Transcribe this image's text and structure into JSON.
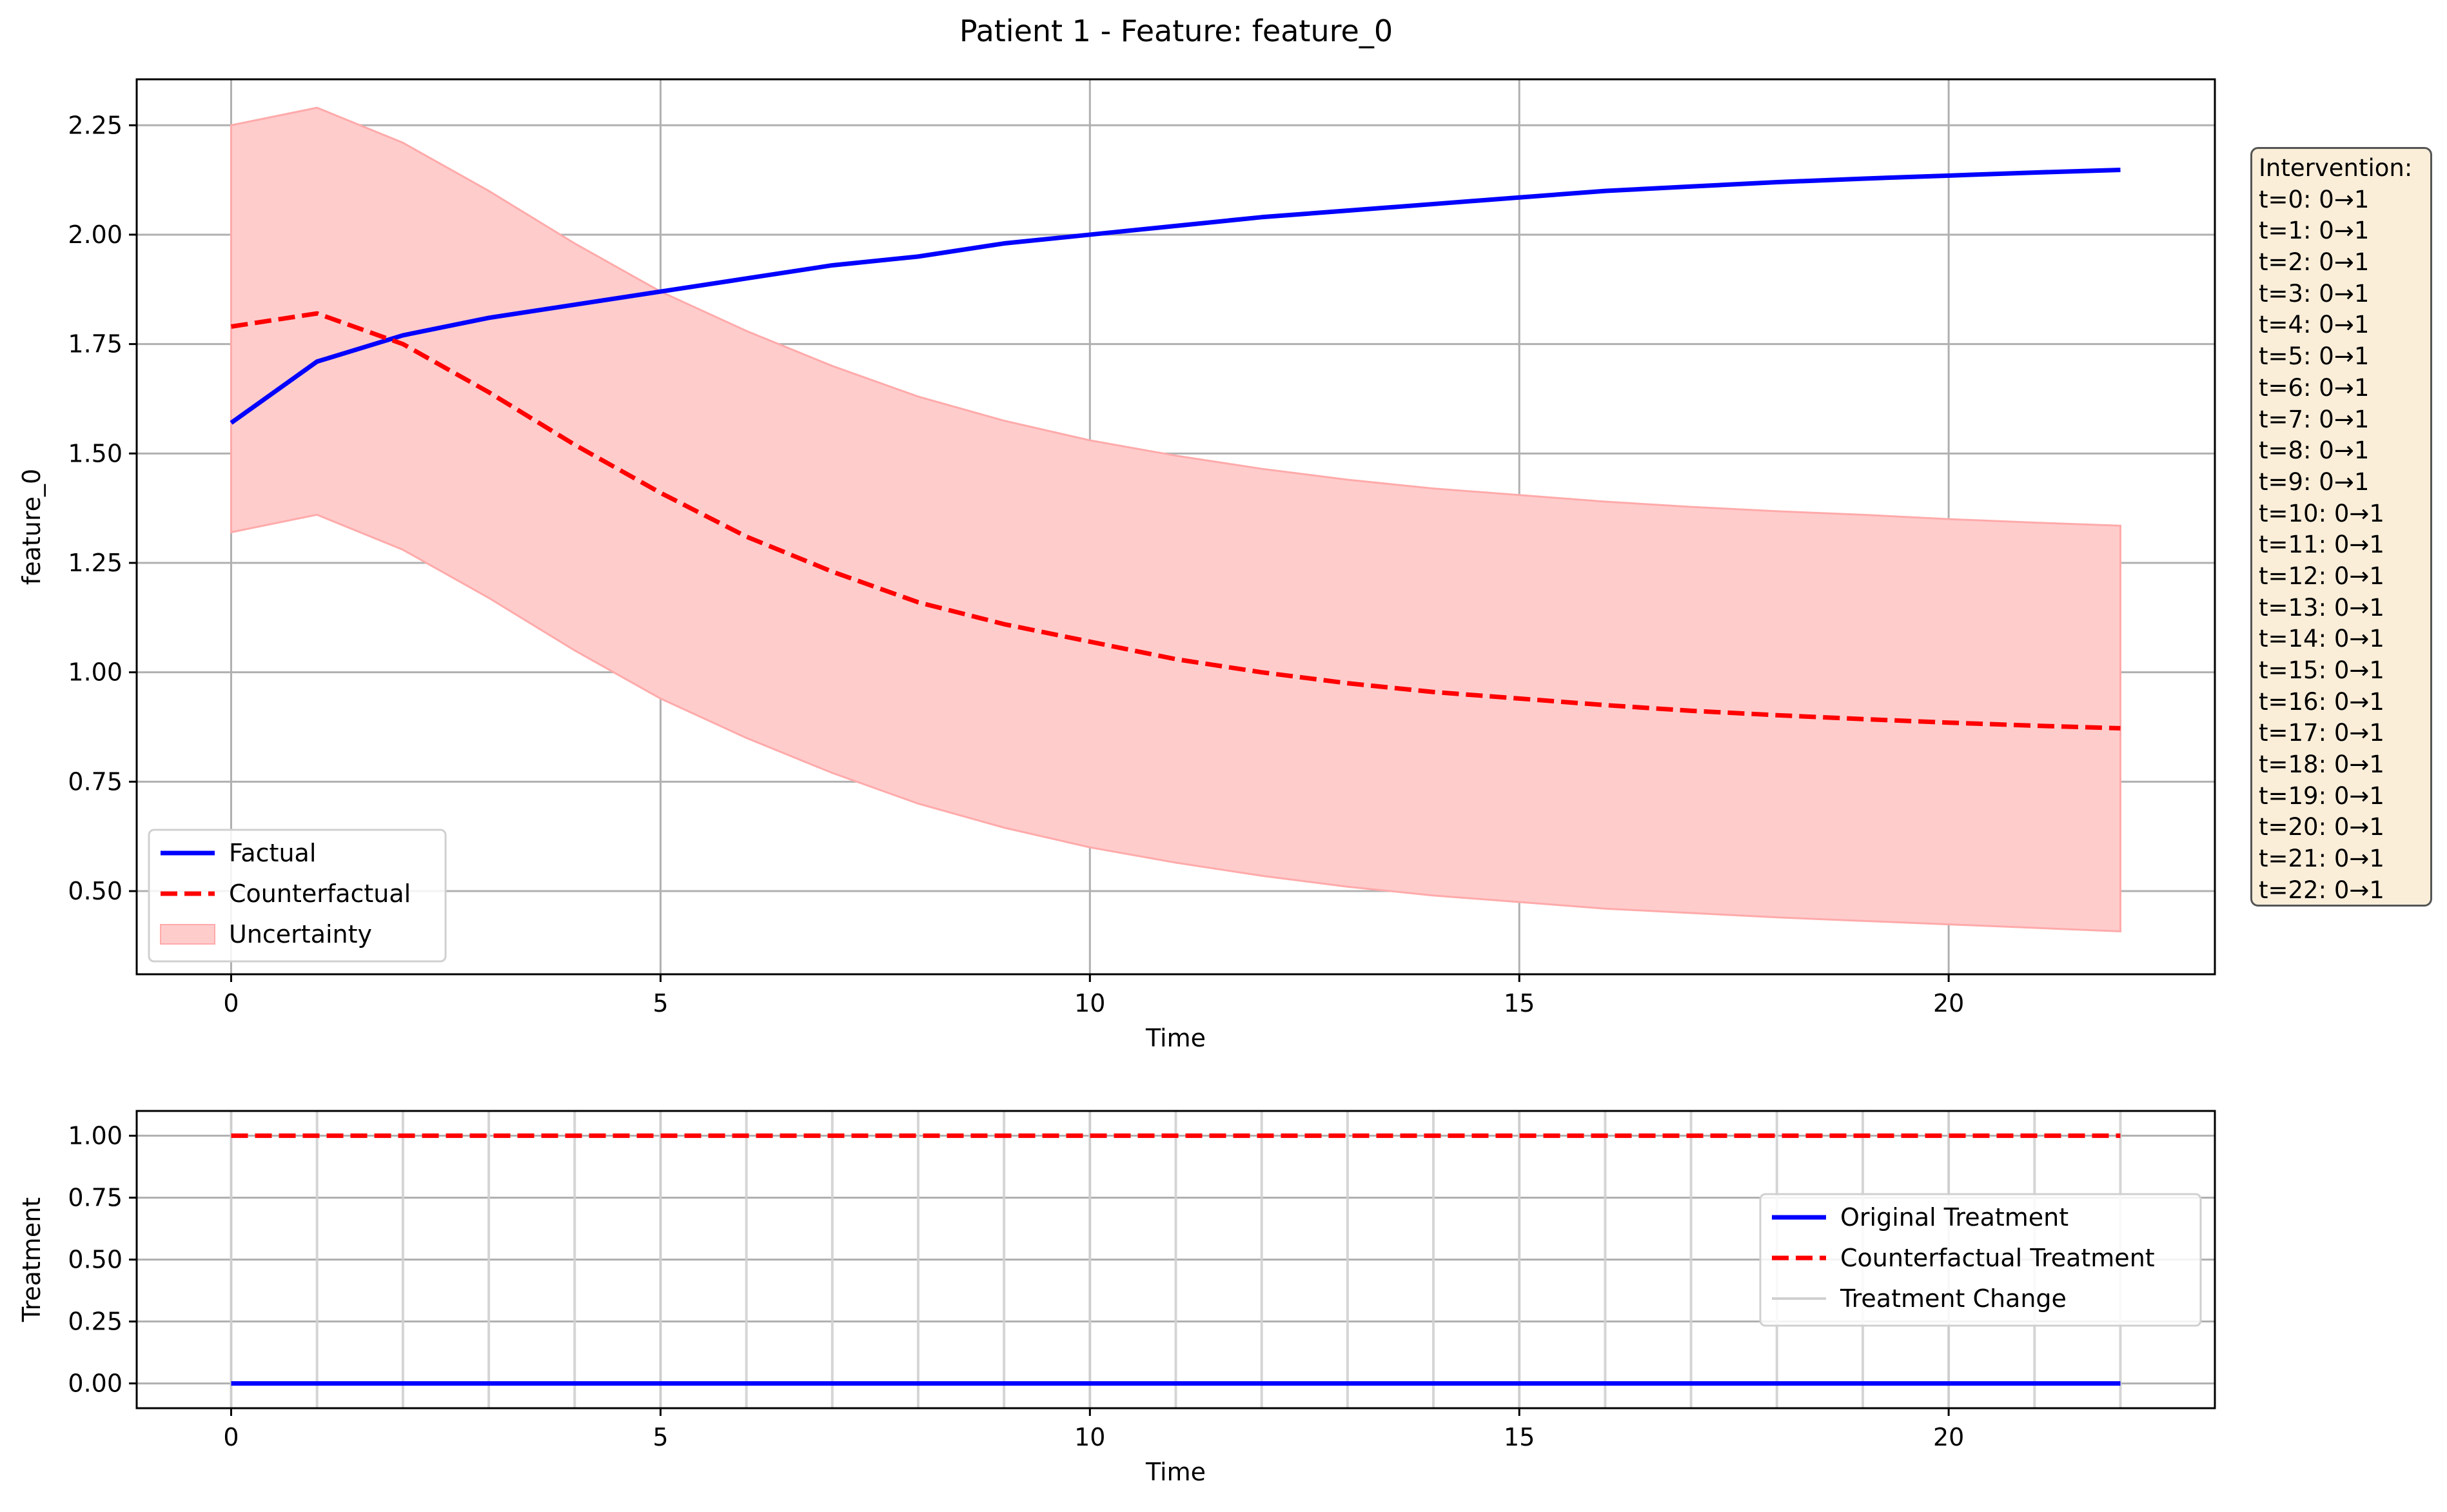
{
  "figure_title": "Patient 1 - Feature: feature_0",
  "colors": {
    "factual": "#0000ff",
    "counterfactual": "#ff0000",
    "uncertainty_fill": "#ffcccc",
    "uncertainty_edge": "#ffaaaa",
    "grid": "#b0b0b0",
    "treatment_change": "#d0d0d0",
    "annotation_bg": "#f5deb3"
  },
  "chart_data": [
    {
      "type": "line",
      "title": "",
      "xlabel": "Time",
      "ylabel": "feature_0",
      "xlim": [
        -1.1,
        23.1
      ],
      "ylim": [
        0.31,
        2.355
      ],
      "xticks": [
        0,
        5,
        10,
        15,
        20
      ],
      "yticks": [
        "0.50",
        "0.75",
        "1.00",
        "1.25",
        "1.50",
        "1.75",
        "2.00",
        "2.25"
      ],
      "grid": true,
      "legend_position": "lower left",
      "x": [
        0,
        1,
        2,
        3,
        4,
        5,
        6,
        7,
        8,
        9,
        10,
        11,
        12,
        13,
        14,
        15,
        16,
        17,
        18,
        19,
        20,
        21,
        22
      ],
      "series": [
        {
          "name": "Factual",
          "style": "solid",
          "color": "#0000ff",
          "values": [
            1.57,
            1.71,
            1.77,
            1.81,
            1.84,
            1.87,
            1.9,
            1.93,
            1.95,
            1.98,
            2.0,
            2.02,
            2.04,
            2.055,
            2.07,
            2.085,
            2.1,
            2.11,
            2.12,
            2.128,
            2.135,
            2.142,
            2.148
          ]
        },
        {
          "name": "Counterfactual",
          "style": "dashed",
          "color": "#ff0000",
          "values": [
            1.79,
            1.82,
            1.75,
            1.64,
            1.52,
            1.41,
            1.31,
            1.23,
            1.16,
            1.11,
            1.07,
            1.03,
            1.0,
            0.975,
            0.955,
            0.94,
            0.925,
            0.912,
            0.902,
            0.893,
            0.885,
            0.878,
            0.872
          ]
        }
      ],
      "band": {
        "name": "Uncertainty",
        "color": "#ffcccc",
        "upper": [
          2.25,
          2.29,
          2.21,
          2.1,
          1.98,
          1.87,
          1.78,
          1.7,
          1.63,
          1.575,
          1.53,
          1.495,
          1.465,
          1.44,
          1.42,
          1.405,
          1.39,
          1.378,
          1.368,
          1.36,
          1.35,
          1.342,
          1.335
        ],
        "lower": [
          1.32,
          1.36,
          1.28,
          1.17,
          1.05,
          0.94,
          0.85,
          0.77,
          0.7,
          0.645,
          0.6,
          0.565,
          0.535,
          0.51,
          0.49,
          0.475,
          0.46,
          0.45,
          0.44,
          0.432,
          0.424,
          0.416,
          0.408
        ]
      },
      "legend": [
        "Factual",
        "Counterfactual",
        "Uncertainty"
      ]
    },
    {
      "type": "line",
      "title": "",
      "xlabel": "Time",
      "ylabel": "Treatment",
      "xlim": [
        -1.1,
        23.1
      ],
      "ylim": [
        -0.1,
        1.1
      ],
      "xticks": [
        0,
        5,
        10,
        15,
        20
      ],
      "yticks": [
        "0.00",
        "0.25",
        "0.50",
        "0.75",
        "1.00"
      ],
      "grid": true,
      "legend_position": "center right",
      "x": [
        0,
        1,
        2,
        3,
        4,
        5,
        6,
        7,
        8,
        9,
        10,
        11,
        12,
        13,
        14,
        15,
        16,
        17,
        18,
        19,
        20,
        21,
        22
      ],
      "series": [
        {
          "name": "Original Treatment",
          "style": "solid",
          "color": "#0000ff",
          "values": [
            0,
            0,
            0,
            0,
            0,
            0,
            0,
            0,
            0,
            0,
            0,
            0,
            0,
            0,
            0,
            0,
            0,
            0,
            0,
            0,
            0,
            0,
            0
          ]
        },
        {
          "name": "Counterfactual Treatment",
          "style": "dashed",
          "color": "#ff0000",
          "values": [
            1,
            1,
            1,
            1,
            1,
            1,
            1,
            1,
            1,
            1,
            1,
            1,
            1,
            1,
            1,
            1,
            1,
            1,
            1,
            1,
            1,
            1,
            1
          ]
        }
      ],
      "treatment_change_x": [
        0,
        1,
        2,
        3,
        4,
        5,
        6,
        7,
        8,
        9,
        10,
        11,
        12,
        13,
        14,
        15,
        16,
        17,
        18,
        19,
        20,
        21,
        22
      ],
      "legend": [
        "Original Treatment",
        "Counterfactual Treatment",
        "Treatment Change"
      ]
    }
  ],
  "annotation": {
    "title": "Intervention:",
    "lines": [
      "t=0: 0→1",
      "t=1: 0→1",
      "t=2: 0→1",
      "t=3: 0→1",
      "t=4: 0→1",
      "t=5: 0→1",
      "t=6: 0→1",
      "t=7: 0→1",
      "t=8: 0→1",
      "t=9: 0→1",
      "t=10: 0→1",
      "t=11: 0→1",
      "t=12: 0→1",
      "t=13: 0→1",
      "t=14: 0→1",
      "t=15: 0→1",
      "t=16: 0→1",
      "t=17: 0→1",
      "t=18: 0→1",
      "t=19: 0→1",
      "t=20: 0→1",
      "t=21: 0→1",
      "t=22: 0→1"
    ]
  }
}
